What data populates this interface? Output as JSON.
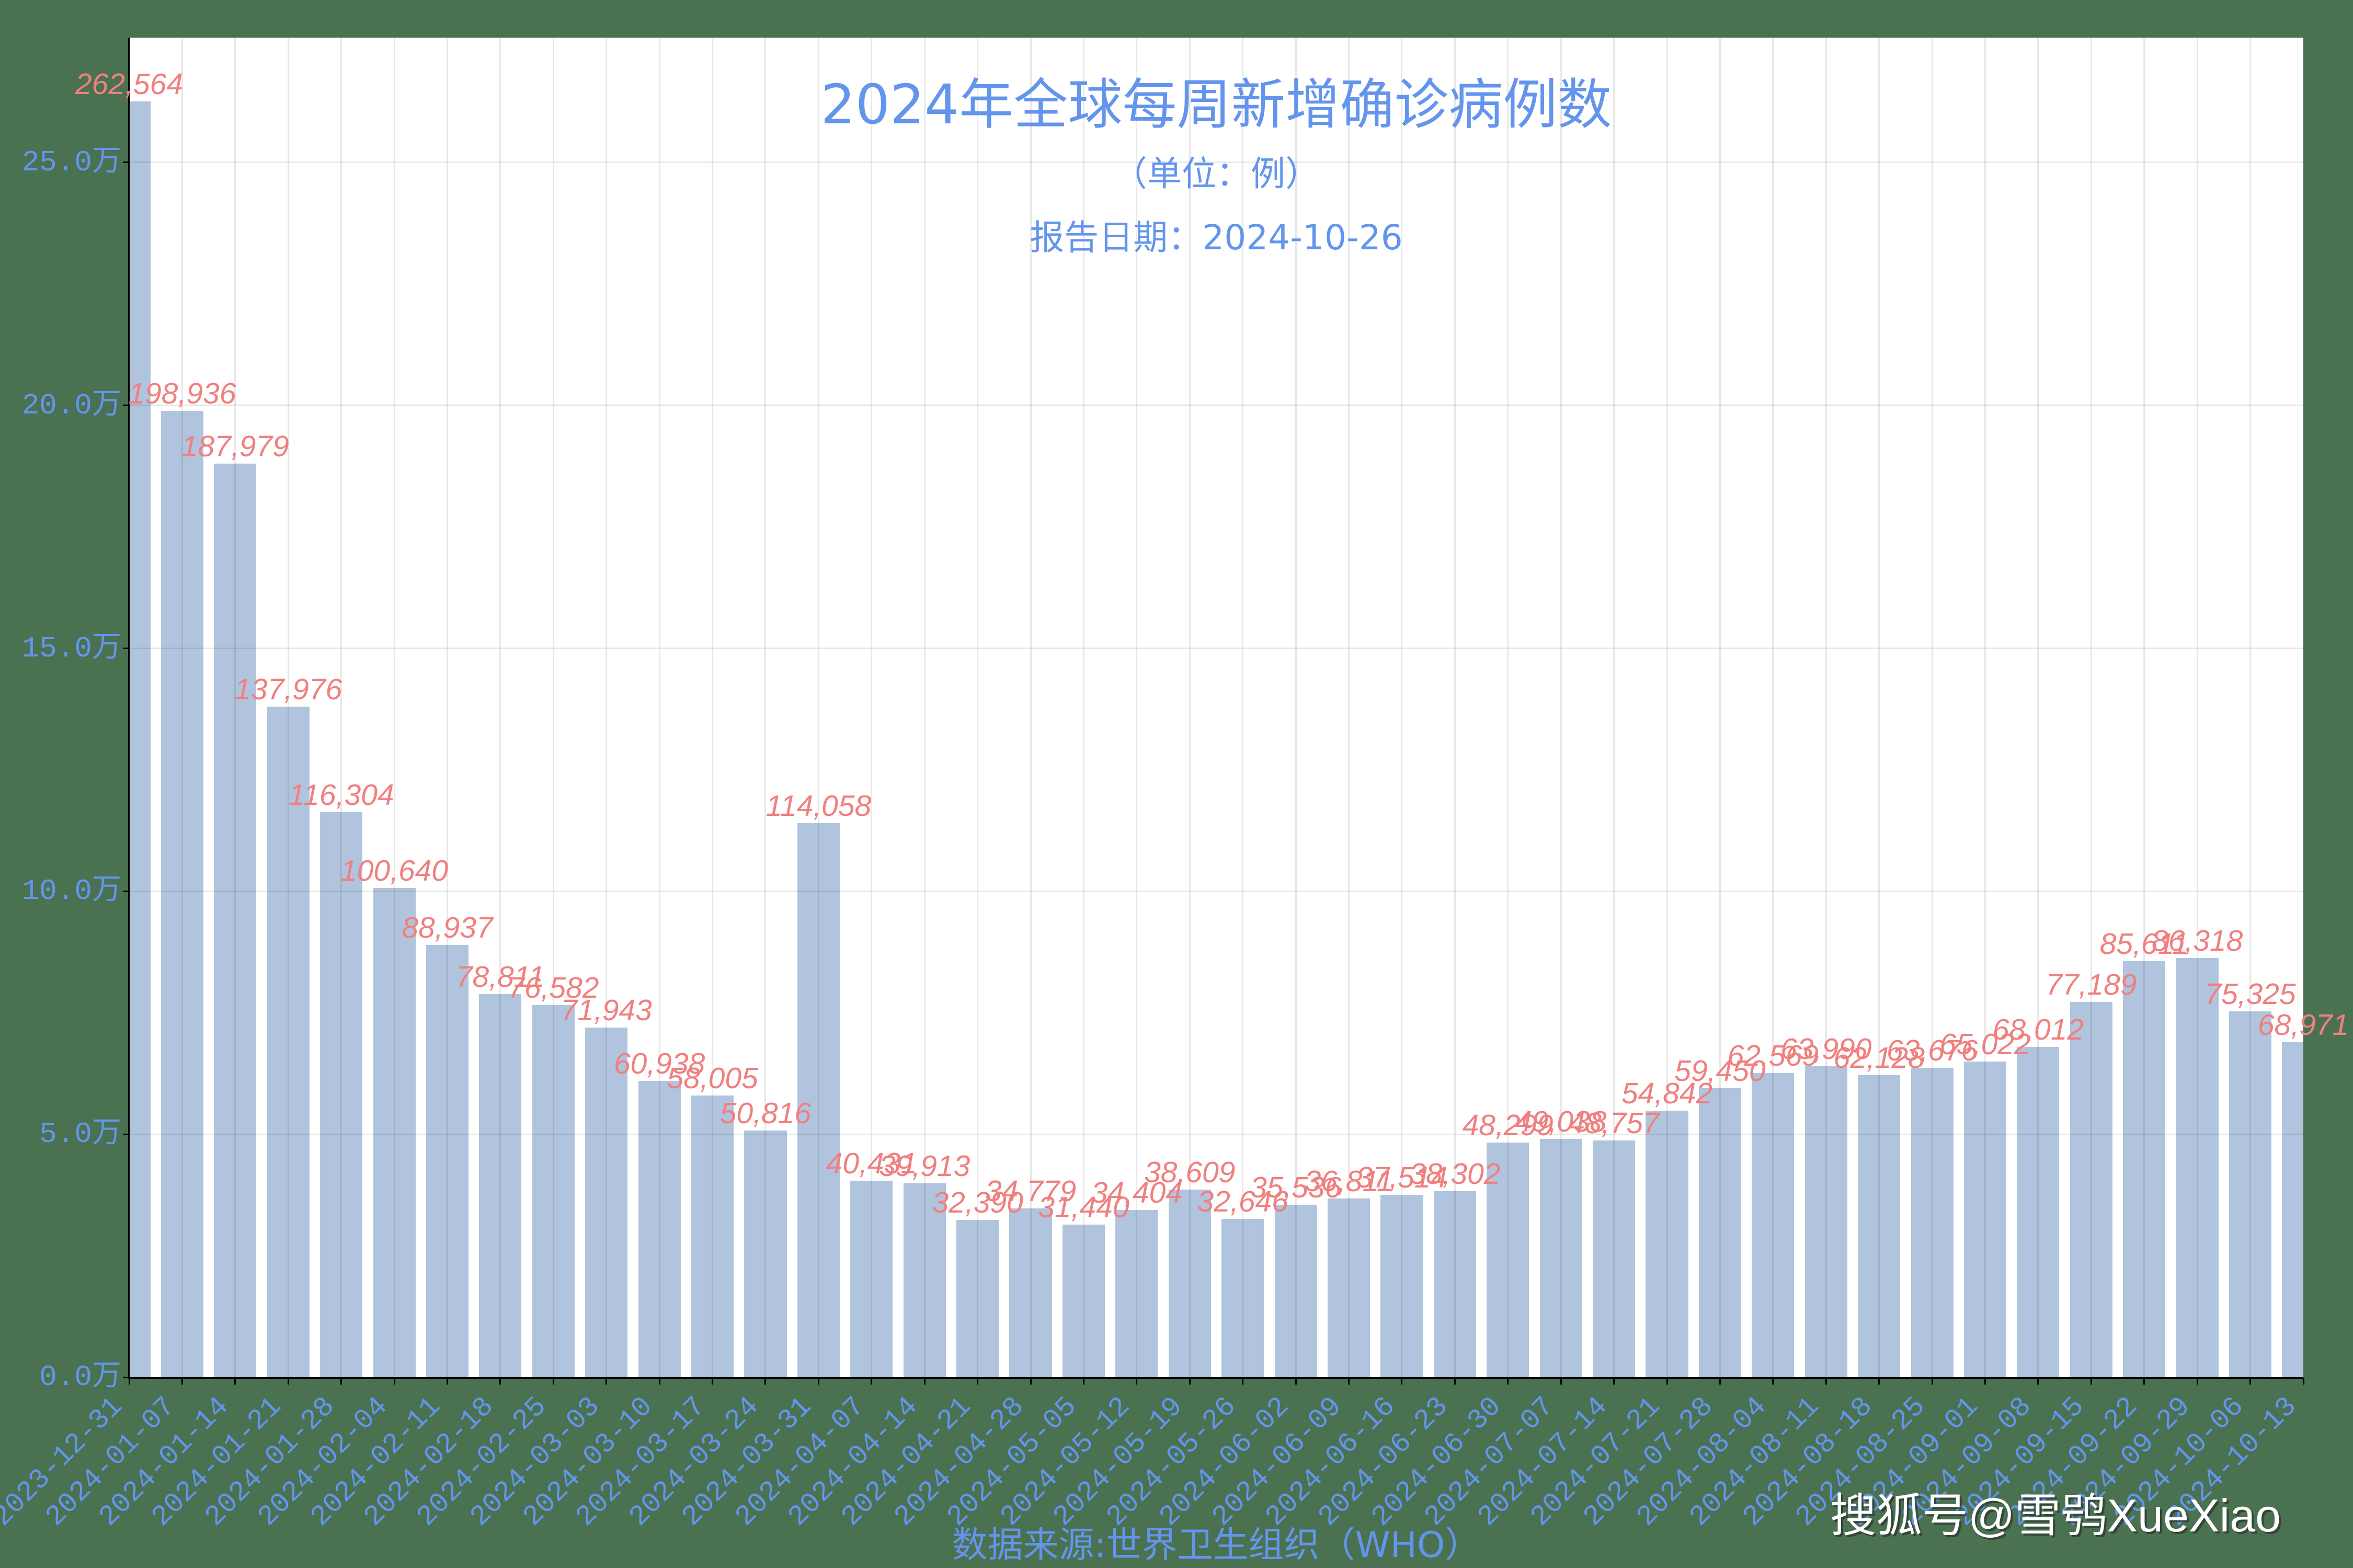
{
  "colors": {
    "background": "#4a7150",
    "plot_background": "#ffffff",
    "bar": "#b0c4de",
    "value_label": "#f08080",
    "axis_text": "#6495ed",
    "watermark": "#ffffff"
  },
  "watermark": "搜狐号@雪鸮XueXiao",
  "chart_data": {
    "type": "bar",
    "title": "2024年全球每周新增确诊病例数",
    "subtitle": "（单位：例）",
    "report_date": "报告日期：2024-10-26",
    "xlabel": "数据来源:世界卫生组织（WHO）",
    "ylabel": "",
    "grid": true,
    "legend": null,
    "bar_width": 0.8,
    "ylim": [
      0,
      275692
    ],
    "yticks": [
      0,
      50000,
      100000,
      150000,
      200000,
      250000
    ],
    "ytick_labels": [
      "0.0万",
      "5.0万",
      "10.0万",
      "15.0万",
      "20.0万",
      "25.0万"
    ],
    "categories": [
      "2023-12-31",
      "2024-01-07",
      "2024-01-14",
      "2024-01-21",
      "2024-01-28",
      "2024-02-04",
      "2024-02-11",
      "2024-02-18",
      "2024-02-25",
      "2024-03-03",
      "2024-03-10",
      "2024-03-17",
      "2024-03-24",
      "2024-03-31",
      "2024-04-07",
      "2024-04-14",
      "2024-04-21",
      "2024-04-28",
      "2024-05-05",
      "2024-05-12",
      "2024-05-19",
      "2024-05-26",
      "2024-06-02",
      "2024-06-09",
      "2024-06-16",
      "2024-06-23",
      "2024-06-30",
      "2024-07-07",
      "2024-07-14",
      "2024-07-21",
      "2024-07-28",
      "2024-08-04",
      "2024-08-11",
      "2024-08-18",
      "2024-08-25",
      "2024-09-01",
      "2024-09-08",
      "2024-09-15",
      "2024-09-22",
      "2024-09-29",
      "2024-10-06",
      "2024-10-13"
    ],
    "values": [
      262564,
      198936,
      187979,
      137976,
      116304,
      100640,
      88937,
      78811,
      76582,
      71943,
      60938,
      58005,
      50816,
      114058,
      40431,
      39913,
      32390,
      34779,
      31440,
      34404,
      38609,
      32646,
      35536,
      36811,
      37514,
      38302,
      48299,
      49038,
      48757,
      54842,
      59450,
      62569,
      63990,
      62128,
      63676,
      65022,
      68012,
      77189,
      85611,
      86318,
      75325,
      68971
    ],
    "value_labels": [
      "262,564",
      "198,936",
      "187,979",
      "137,976",
      "116,304",
      "100,640",
      "88,937",
      "78,811",
      "76,582",
      "71,943",
      "60,938",
      "58,005",
      "50,816",
      "114,058",
      "40,431",
      "39,913",
      "32,390",
      "34,779",
      "31,440",
      "34,404",
      "38,609",
      "32,646",
      "35,536",
      "36,811",
      "37,514",
      "38,302",
      "48,299",
      "49,038",
      "48,757",
      "54,842",
      "59,450",
      "62,569",
      "63,990",
      "62,128",
      "63,676",
      "65,022",
      "68,012",
      "77,189",
      "85,611",
      "86,318",
      "75,325",
      "68,971"
    ]
  }
}
